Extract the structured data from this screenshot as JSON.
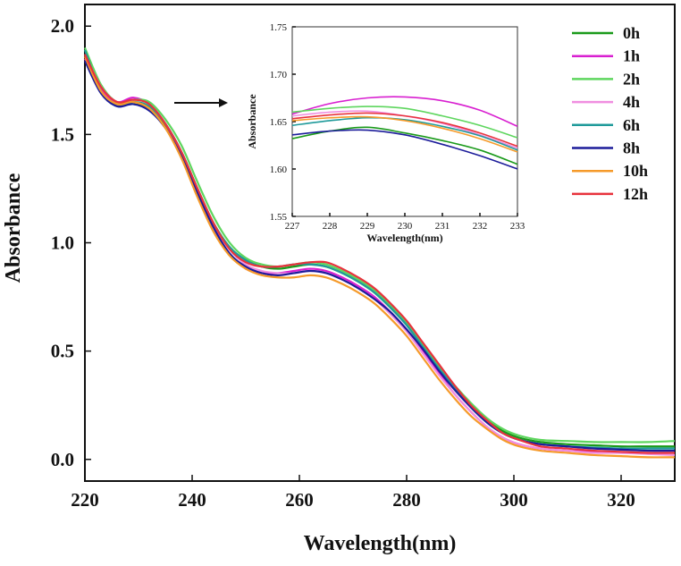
{
  "chart_data": [
    {
      "name": "main",
      "type": "line",
      "xlabel": "Wavelength(nm)",
      "ylabel": "Absorbance",
      "xlim": [
        220,
        330
      ],
      "ylim": [
        -0.1,
        2.1
      ],
      "xticks": [
        220,
        240,
        260,
        280,
        300,
        320
      ],
      "yticks": [
        0.0,
        0.5,
        1.0,
        1.5,
        2.0
      ],
      "xtick_labels": [
        "220",
        "240",
        "260",
        "280",
        "300",
        "320"
      ],
      "ytick_labels": [
        "0.0",
        "0.5",
        "1.0",
        "1.5",
        "2.0"
      ],
      "x": [
        220,
        223,
        226,
        229,
        232,
        235,
        238,
        241,
        244,
        247,
        250,
        253,
        256,
        259,
        262,
        265,
        268,
        271,
        274,
        277,
        280,
        283,
        286,
        289,
        292,
        295,
        298,
        301,
        305,
        310,
        315,
        320,
        325,
        330
      ],
      "series": [
        {
          "name": "0h",
          "color": "#1a9a1a",
          "values": [
            1.86,
            1.71,
            1.64,
            1.64,
            1.62,
            1.54,
            1.41,
            1.24,
            1.09,
            0.98,
            0.92,
            0.89,
            0.88,
            0.89,
            0.9,
            0.89,
            0.86,
            0.82,
            0.77,
            0.7,
            0.62,
            0.52,
            0.42,
            0.33,
            0.25,
            0.18,
            0.13,
            0.1,
            0.08,
            0.07,
            0.065,
            0.06,
            0.06,
            0.06
          ]
        },
        {
          "name": "1h",
          "color": "#d81fd0",
          "values": [
            1.85,
            1.71,
            1.65,
            1.67,
            1.64,
            1.55,
            1.41,
            1.23,
            1.07,
            0.95,
            0.88,
            0.86,
            0.86,
            0.87,
            0.88,
            0.87,
            0.84,
            0.8,
            0.75,
            0.68,
            0.6,
            0.5,
            0.4,
            0.3,
            0.22,
            0.15,
            0.1,
            0.07,
            0.05,
            0.04,
            0.035,
            0.03,
            0.03,
            0.03
          ]
        },
        {
          "name": "2h",
          "color": "#5ed65e",
          "values": [
            1.9,
            1.73,
            1.65,
            1.66,
            1.65,
            1.57,
            1.45,
            1.28,
            1.12,
            1.0,
            0.93,
            0.9,
            0.89,
            0.9,
            0.91,
            0.9,
            0.87,
            0.83,
            0.78,
            0.71,
            0.63,
            0.53,
            0.43,
            0.34,
            0.26,
            0.19,
            0.14,
            0.11,
            0.09,
            0.085,
            0.08,
            0.08,
            0.08,
            0.085
          ]
        },
        {
          "name": "4h",
          "color": "#f08ee0",
          "values": [
            1.87,
            1.72,
            1.65,
            1.65,
            1.63,
            1.55,
            1.42,
            1.25,
            1.09,
            0.97,
            0.9,
            0.87,
            0.86,
            0.86,
            0.87,
            0.86,
            0.83,
            0.79,
            0.74,
            0.67,
            0.59,
            0.49,
            0.39,
            0.3,
            0.22,
            0.15,
            0.1,
            0.07,
            0.05,
            0.04,
            0.03,
            0.03,
            0.025,
            0.02
          ]
        },
        {
          "name": "6h",
          "color": "#1f9a9a",
          "values": [
            1.89,
            1.7,
            1.63,
            1.65,
            1.63,
            1.55,
            1.42,
            1.25,
            1.09,
            0.98,
            0.92,
            0.89,
            0.89,
            0.9,
            0.9,
            0.89,
            0.86,
            0.82,
            0.77,
            0.7,
            0.62,
            0.52,
            0.42,
            0.33,
            0.24,
            0.17,
            0.12,
            0.09,
            0.07,
            0.06,
            0.055,
            0.05,
            0.05,
            0.05
          ]
        },
        {
          "name": "8h",
          "color": "#1c1c9a",
          "values": [
            1.84,
            1.69,
            1.63,
            1.64,
            1.61,
            1.53,
            1.4,
            1.23,
            1.07,
            0.95,
            0.89,
            0.86,
            0.85,
            0.86,
            0.87,
            0.86,
            0.83,
            0.79,
            0.74,
            0.68,
            0.6,
            0.51,
            0.41,
            0.32,
            0.24,
            0.17,
            0.12,
            0.09,
            0.07,
            0.06,
            0.05,
            0.045,
            0.04,
            0.04
          ]
        },
        {
          "name": "10h",
          "color": "#f59a2a",
          "values": [
            1.86,
            1.7,
            1.64,
            1.65,
            1.62,
            1.53,
            1.39,
            1.21,
            1.05,
            0.94,
            0.88,
            0.85,
            0.84,
            0.84,
            0.85,
            0.84,
            0.81,
            0.77,
            0.72,
            0.65,
            0.57,
            0.47,
            0.37,
            0.28,
            0.2,
            0.14,
            0.09,
            0.06,
            0.04,
            0.03,
            0.02,
            0.015,
            0.01,
            0.01
          ]
        },
        {
          "name": "12h",
          "color": "#e8323c",
          "values": [
            1.87,
            1.72,
            1.65,
            1.66,
            1.64,
            1.55,
            1.42,
            1.25,
            1.09,
            0.97,
            0.91,
            0.89,
            0.89,
            0.9,
            0.91,
            0.91,
            0.88,
            0.84,
            0.79,
            0.72,
            0.64,
            0.54,
            0.44,
            0.34,
            0.25,
            0.18,
            0.12,
            0.09,
            0.06,
            0.05,
            0.04,
            0.035,
            0.03,
            0.03
          ]
        }
      ]
    },
    {
      "name": "inset",
      "type": "line",
      "xlabel": "Wavelength(nm)",
      "ylabel": "Absorbance",
      "xlim": [
        227,
        233
      ],
      "ylim": [
        1.55,
        1.75
      ],
      "xticks": [
        227,
        228,
        229,
        230,
        231,
        232,
        233
      ],
      "yticks": [
        1.55,
        1.6,
        1.65,
        1.7,
        1.75
      ],
      "xtick_labels": [
        "227",
        "228",
        "229",
        "230",
        "231",
        "232",
        "233"
      ],
      "ytick_labels": [
        "1.55",
        "1.60",
        "1.65",
        "1.70",
        "1.75"
      ],
      "x": [
        227,
        228,
        229,
        230,
        231,
        232,
        233
      ],
      "series": [
        {
          "name": "0h",
          "color": "#1a9a1a",
          "values": [
            1.632,
            1.64,
            1.644,
            1.638,
            1.63,
            1.62,
            1.605
          ]
        },
        {
          "name": "1h",
          "color": "#d81fd0",
          "values": [
            1.658,
            1.669,
            1.675,
            1.676,
            1.672,
            1.662,
            1.645
          ]
        },
        {
          "name": "2h",
          "color": "#5ed65e",
          "values": [
            1.66,
            1.664,
            1.666,
            1.664,
            1.656,
            1.646,
            1.633
          ]
        },
        {
          "name": "4h",
          "color": "#f08ee0",
          "values": [
            1.656,
            1.66,
            1.661,
            1.656,
            1.648,
            1.636,
            1.622
          ]
        },
        {
          "name": "6h",
          "color": "#1f9a9a",
          "values": [
            1.646,
            1.651,
            1.654,
            1.652,
            1.645,
            1.635,
            1.62
          ]
        },
        {
          "name": "8h",
          "color": "#1c1c9a",
          "values": [
            1.636,
            1.64,
            1.641,
            1.636,
            1.626,
            1.614,
            1.6
          ]
        },
        {
          "name": "10h",
          "color": "#f59a2a",
          "values": [
            1.651,
            1.654,
            1.655,
            1.651,
            1.643,
            1.632,
            1.618
          ]
        },
        {
          "name": "12h",
          "color": "#e8323c",
          "values": [
            1.653,
            1.657,
            1.659,
            1.656,
            1.649,
            1.638,
            1.624
          ]
        }
      ]
    }
  ],
  "legend": {
    "placement": "top-right",
    "items": [
      {
        "label": "0h",
        "color": "#1a9a1a"
      },
      {
        "label": "1h",
        "color": "#d81fd0"
      },
      {
        "label": "2h",
        "color": "#5ed65e"
      },
      {
        "label": "4h",
        "color": "#f08ee0"
      },
      {
        "label": "6h",
        "color": "#1f9a9a"
      },
      {
        "label": "8h",
        "color": "#1c1c9a"
      },
      {
        "label": "10h",
        "color": "#f59a2a"
      },
      {
        "label": "12h",
        "color": "#e8323c"
      }
    ]
  }
}
